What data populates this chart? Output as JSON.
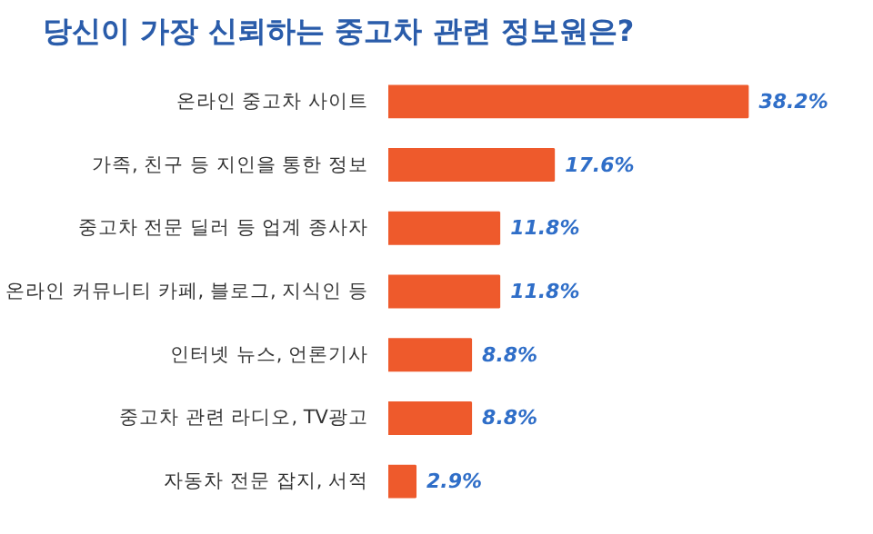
{
  "chart_data": {
    "type": "bar",
    "orientation": "horizontal",
    "title": "당신이 가장 신뢰하는 중고차 관련 정보원은?",
    "categories": [
      "온라인 중고차 사이트",
      "가족, 친구 등 지인을 통한 정보",
      "중고차 전문 딜러 등 업계 종사자",
      "온라인 커뮤니티 카페, 블로그, 지식인 등",
      "인터넷 뉴스, 언론기사",
      "중고차 관련 라디오, TV광고",
      "자동차 전문 잡지, 서적"
    ],
    "values": [
      38.2,
      17.6,
      11.8,
      11.8,
      8.8,
      8.8,
      2.9
    ],
    "value_labels": [
      "38.2%",
      "17.6%",
      "11.8%",
      "11.8%",
      "8.8%",
      "8.8%",
      "2.9%"
    ],
    "color": "#ee5a2c"
  }
}
